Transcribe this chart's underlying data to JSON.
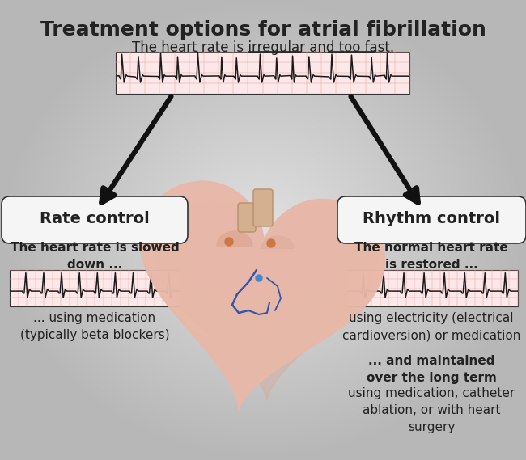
{
  "title": "Treatment options for atrial fibrillation",
  "subtitle": "The heart rate is irregular and too fast.",
  "bg_color": "#cccccc",
  "bg_gradient_center": "#e0e0e0",
  "ecg_bg": "#fce8e8",
  "ecg_grid": "#f0a0a0",
  "ecg_line": "#1a1a1a",
  "box_bg": "#f5f5f5",
  "box_edge": "#333333",
  "left_label": "Rate control",
  "right_label": "Rhythm control",
  "left_desc1": "The heart rate is slowed\ndown ...",
  "left_desc2": "... using medication\n(typically beta blockers)",
  "right_desc1": "The normal heart rate\nis restored ...",
  "right_desc2": "using electricity (electrical\ncardioversion) or medication",
  "right_desc3_bold": "... and maintained\nover the long term",
  "right_desc3_normal": "using medication, catheter\nablation, or with heart\nsurgery",
  "arrow_color": "#111111",
  "text_color": "#222222",
  "title_fontsize": 18,
  "label_fontsize": 14,
  "body_fontsize": 11
}
